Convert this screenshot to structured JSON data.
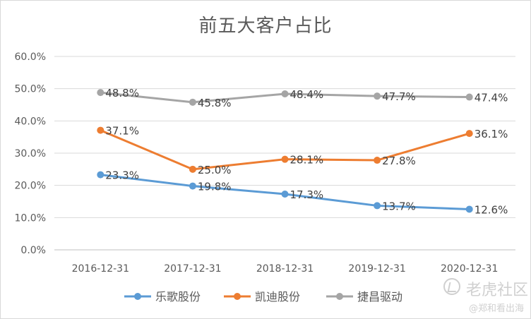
{
  "chart_data": {
    "type": "line",
    "title": "前五大客户占比",
    "categories": [
      "2016-12-31",
      "2017-12-31",
      "2018-12-31",
      "2019-12-31",
      "2020-12-31"
    ],
    "ylim": [
      0,
      60
    ],
    "yticks": [
      0,
      10,
      20,
      30,
      40,
      50,
      60
    ],
    "ytick_labels": [
      "0.0%",
      "10.0%",
      "20.0%",
      "30.0%",
      "40.0%",
      "50.0%",
      "60.0%"
    ],
    "grid": true,
    "legend_position": "bottom",
    "series": [
      {
        "name": "乐歌股份",
        "color": "#5b9bd5",
        "values": [
          23.3,
          19.8,
          17.3,
          13.7,
          12.6
        ],
        "labels": [
          "23.3%",
          "19.8%",
          "17.3%",
          "13.7%",
          "12.6%"
        ]
      },
      {
        "name": "凯迪股份",
        "color": "#ed7d31",
        "values": [
          37.1,
          25.0,
          28.1,
          27.8,
          36.1
        ],
        "labels": [
          "37.1%",
          "25.0%",
          "28.1%",
          "27.8%",
          "36.1%"
        ]
      },
      {
        "name": "捷昌驱动",
        "color": "#a5a5a5",
        "values": [
          48.8,
          45.8,
          48.4,
          47.7,
          47.4
        ],
        "labels": [
          "48.8%",
          "45.8%",
          "48.4%",
          "47.7%",
          "47.4%"
        ]
      }
    ]
  },
  "watermark": {
    "name": "老虎社区",
    "handle": "@郑和看出海",
    "logo_icon": "tiger-community-logo-icon"
  }
}
